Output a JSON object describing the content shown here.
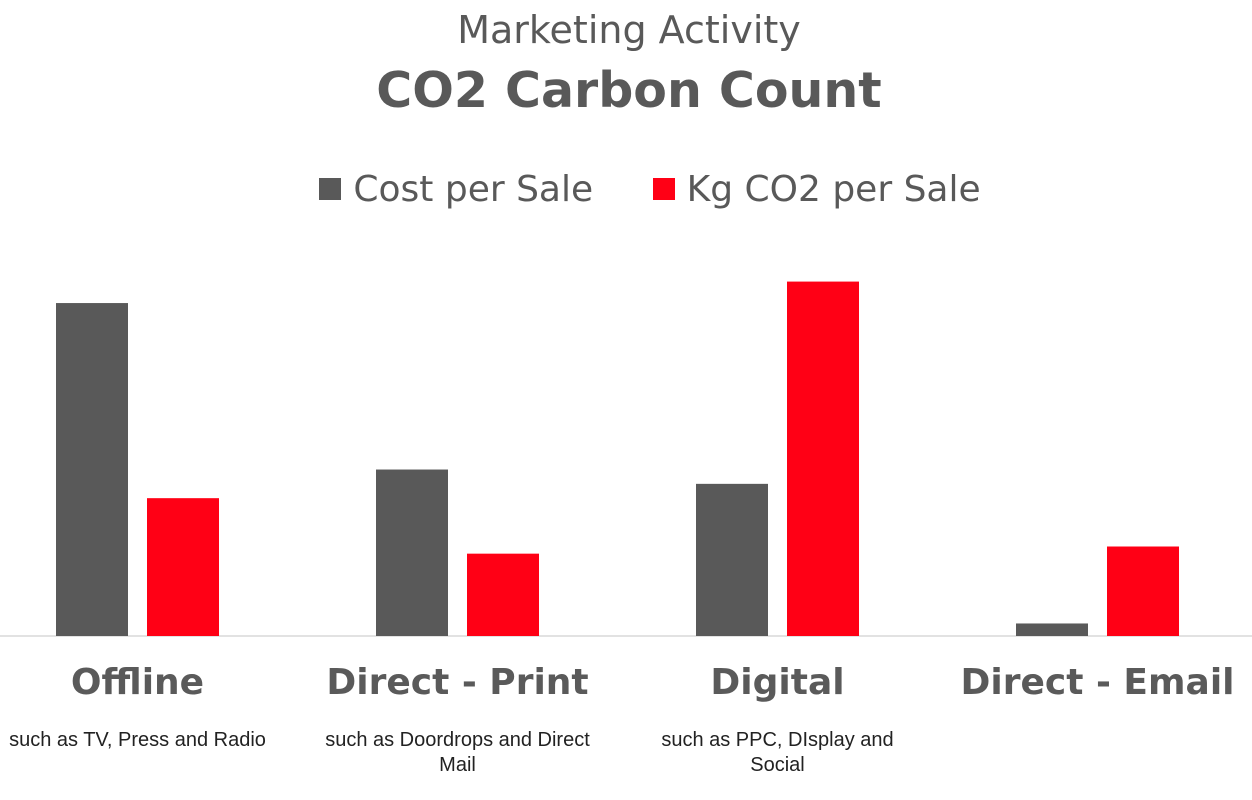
{
  "chart_data": {
    "type": "bar",
    "subtitle": "Marketing Activity",
    "title": "CO2 Carbon Count",
    "categories": [
      "Offline",
      "Direct - Print",
      "Digital",
      "Direct - Email"
    ],
    "category_notes": [
      "such as TV, Press and Radio",
      "such as Doordrops and Direct Mail",
      "such as PPC, DIsplay and Social",
      ""
    ],
    "series": [
      {
        "name": "Cost per Sale",
        "color": "#595959",
        "values": [
          93,
          46.5,
          42.5,
          3.5
        ]
      },
      {
        "name": "Kg CO2 per Sale",
        "color": "#ff0015",
        "values": [
          38.5,
          23,
          99,
          25
        ]
      }
    ],
    "ylim": [
      0,
      100
    ],
    "grid": false,
    "legend_position": "top"
  }
}
